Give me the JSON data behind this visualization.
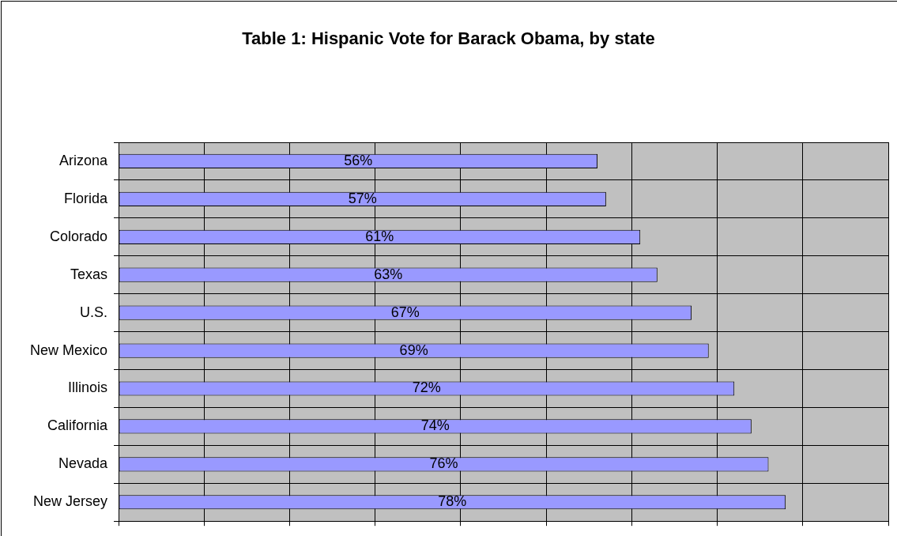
{
  "chart_data": {
    "type": "bar",
    "orientation": "horizontal",
    "title": "Table 1: Hispanic Vote for Barack Obama, by state",
    "categories": [
      "Arizona",
      "Florida",
      "Colorado",
      "Texas",
      "U.S.",
      "New Mexico",
      "Illinois",
      "California",
      "Nevada",
      "New Jersey"
    ],
    "values": [
      56,
      57,
      61,
      63,
      67,
      69,
      72,
      74,
      76,
      78
    ],
    "value_labels": [
      "56%",
      "57%",
      "61%",
      "63%",
      "67%",
      "69%",
      "72%",
      "74%",
      "76%",
      "78%"
    ],
    "color": "#9999ff",
    "xlim": [
      0,
      90
    ],
    "xticks": [
      {
        "value": 0,
        "label": null
      },
      {
        "value": 10,
        "label": null
      },
      {
        "value": 20,
        "label": null
      },
      {
        "value": 30,
        "label": null
      },
      {
        "value": 40,
        "label": null
      },
      {
        "value": 50,
        "label": null
      },
      {
        "value": 60,
        "label": null
      },
      {
        "value": 70,
        "label": null
      },
      {
        "value": 80,
        "label": null
      },
      {
        "value": 90,
        "label": null
      }
    ],
    "tick_labels": "y",
    "grid": true,
    "legend": false
  }
}
